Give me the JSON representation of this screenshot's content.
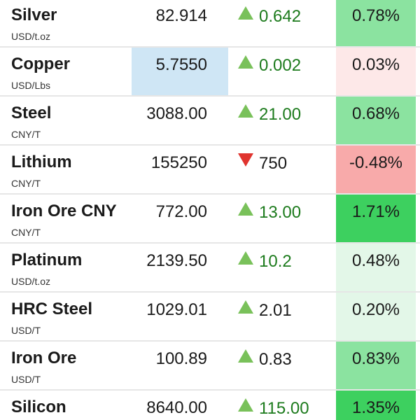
{
  "colors": {
    "pct_strong_green": "#3dd05f",
    "pct_medium_green": "#8be3a0",
    "pct_light_green": "#e3f7e8",
    "pct_light_red": "#fde8e8",
    "pct_red": "#f8aaaa",
    "price_highlight": "#cfe6f5",
    "up_arrow": "#79c15a",
    "down_arrow": "#e0342f",
    "positive_text": "#1d7b1d"
  },
  "rows": [
    {
      "name": "Silver",
      "unit": "USD/t.oz",
      "price": "82.914",
      "change": "0.642",
      "direction": "up",
      "percent": "0.78%"
    },
    {
      "name": "Copper",
      "unit": "USD/Lbs",
      "price": "5.7550",
      "change": "0.002",
      "direction": "up",
      "percent": "0.03%"
    },
    {
      "name": "Steel",
      "unit": "CNY/T",
      "price": "3088.00",
      "change": "21.00",
      "direction": "up",
      "percent": "0.68%"
    },
    {
      "name": "Lithium",
      "unit": "CNY/T",
      "price": "155250",
      "change": "750",
      "direction": "down",
      "percent": "-0.48%"
    },
    {
      "name": "Iron Ore CNY",
      "unit": "CNY/T",
      "price": "772.00",
      "change": "13.00",
      "direction": "up",
      "percent": "1.71%"
    },
    {
      "name": "Platinum",
      "unit": "USD/t.oz",
      "price": "2139.50",
      "change": "10.2",
      "direction": "up",
      "percent": "0.48%"
    },
    {
      "name": "HRC Steel",
      "unit": "USD/T",
      "price": "1029.01",
      "change": "2.01",
      "direction": "up",
      "percent": "0.20%"
    },
    {
      "name": "Iron Ore",
      "unit": "USD/T",
      "price": "100.89",
      "change": "0.83",
      "direction": "up",
      "percent": "0.83%"
    },
    {
      "name": "Silicon",
      "unit": "",
      "price": "8640.00",
      "change": "115.00",
      "direction": "up",
      "percent": "1.35%"
    }
  ]
}
